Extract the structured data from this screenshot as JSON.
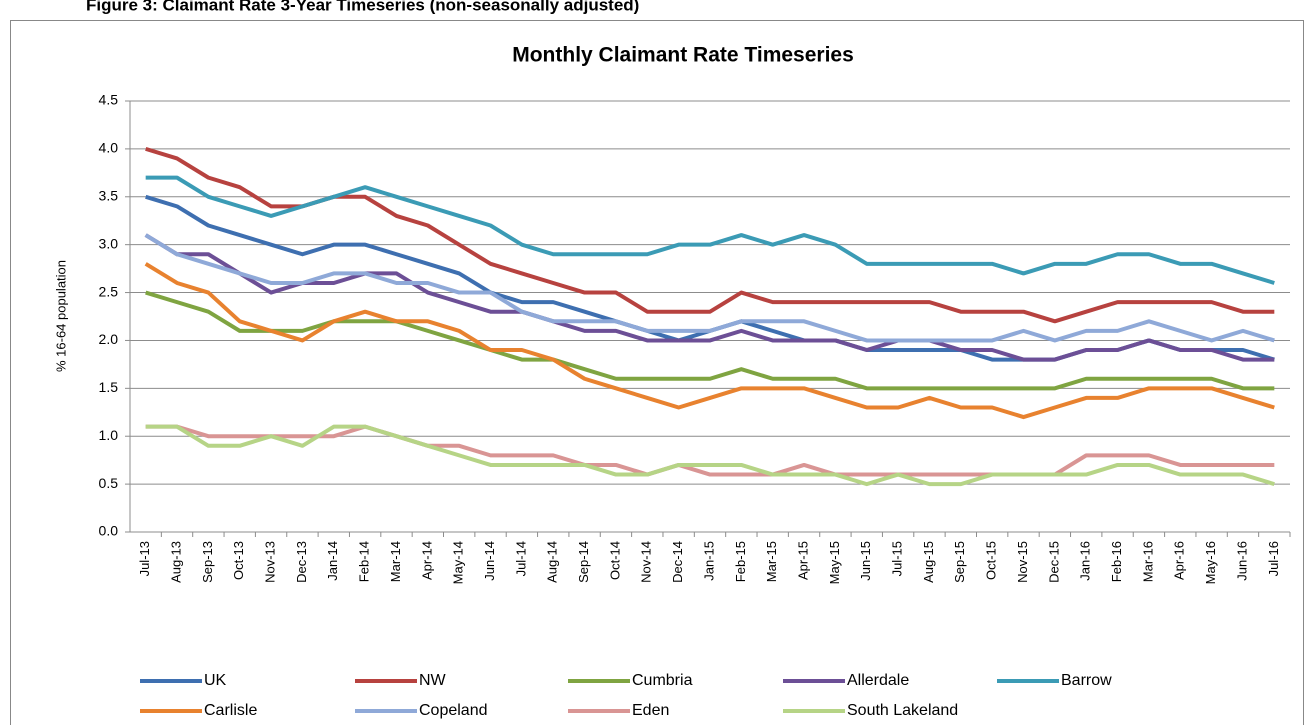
{
  "chart_data": {
    "type": "line",
    "caption": "Figure 3: Claimant Rate 3-Year Timeseries (non-seasonally adjusted)",
    "title": "Monthly Claimant Rate Timeseries",
    "y_label": "% 16-64 population",
    "categories": [
      "Jul-13",
      "Aug-13",
      "Sep-13",
      "Oct-13",
      "Nov-13",
      "Dec-13",
      "Jan-14",
      "Feb-14",
      "Mar-14",
      "Apr-14",
      "May-14",
      "Jun-14",
      "Jul-14",
      "Aug-14",
      "Sep-14",
      "Oct-14",
      "Nov-14",
      "Dec-14",
      "Jan-15",
      "Feb-15",
      "Mar-15",
      "Apr-15",
      "May-15",
      "Jun-15",
      "Jul-15",
      "Aug-15",
      "Sep-15",
      "Oct-15",
      "Nov-15",
      "Dec-15",
      "Jan-16",
      "Feb-16",
      "Mar-16",
      "Apr-16",
      "May-16",
      "Jun-16",
      "Jul-16"
    ],
    "series": [
      {
        "name": "UK",
        "color": "#3e6fb0",
        "values": [
          3.5,
          3.4,
          3.2,
          3.1,
          3.0,
          2.9,
          3.0,
          3.0,
          2.9,
          2.8,
          2.7,
          2.5,
          2.4,
          2.4,
          2.3,
          2.2,
          2.1,
          2.0,
          2.1,
          2.2,
          2.1,
          2.0,
          2.0,
          1.9,
          1.9,
          1.9,
          1.9,
          1.8,
          1.8,
          1.8,
          1.9,
          1.9,
          2.0,
          1.9,
          1.9,
          1.9,
          1.8
        ]
      },
      {
        "name": "NW",
        "color": "#b7423f",
        "values": [
          4.0,
          3.9,
          3.7,
          3.6,
          3.4,
          3.4,
          3.5,
          3.5,
          3.3,
          3.2,
          3.0,
          2.8,
          2.7,
          2.6,
          2.5,
          2.5,
          2.3,
          2.3,
          2.3,
          2.5,
          2.4,
          2.4,
          2.4,
          2.4,
          2.4,
          2.4,
          2.3,
          2.3,
          2.3,
          2.2,
          2.3,
          2.4,
          2.4,
          2.4,
          2.4,
          2.3,
          2.3
        ]
      },
      {
        "name": "Cumbria",
        "color": "#7fa441",
        "values": [
          2.5,
          2.4,
          2.3,
          2.1,
          2.1,
          2.1,
          2.2,
          2.2,
          2.2,
          2.1,
          2.0,
          1.9,
          1.8,
          1.8,
          1.7,
          1.6,
          1.6,
          1.6,
          1.6,
          1.7,
          1.6,
          1.6,
          1.6,
          1.5,
          1.5,
          1.5,
          1.5,
          1.5,
          1.5,
          1.5,
          1.6,
          1.6,
          1.6,
          1.6,
          1.6,
          1.5,
          1.5
        ]
      },
      {
        "name": "Allerdale",
        "color": "#6c4f96",
        "values": [
          3.1,
          2.9,
          2.9,
          2.7,
          2.5,
          2.6,
          2.6,
          2.7,
          2.7,
          2.5,
          2.4,
          2.3,
          2.3,
          2.2,
          2.1,
          2.1,
          2.0,
          2.0,
          2.0,
          2.1,
          2.0,
          2.0,
          2.0,
          1.9,
          2.0,
          2.0,
          1.9,
          1.9,
          1.8,
          1.8,
          1.9,
          1.9,
          2.0,
          1.9,
          1.9,
          1.8,
          1.8
        ]
      },
      {
        "name": "Barrow",
        "color": "#3b9bb5",
        "values": [
          3.7,
          3.7,
          3.5,
          3.4,
          3.3,
          3.4,
          3.5,
          3.6,
          3.5,
          3.4,
          3.3,
          3.2,
          3.0,
          2.9,
          2.9,
          2.9,
          2.9,
          3.0,
          3.0,
          3.1,
          3.0,
          3.1,
          3.0,
          2.8,
          2.8,
          2.8,
          2.8,
          2.8,
          2.7,
          2.8,
          2.8,
          2.9,
          2.9,
          2.8,
          2.8,
          2.7,
          2.6
        ]
      },
      {
        "name": "Carlisle",
        "color": "#e8822f",
        "values": [
          2.8,
          2.6,
          2.5,
          2.2,
          2.1,
          2.0,
          2.2,
          2.3,
          2.2,
          2.2,
          2.1,
          1.9,
          1.9,
          1.8,
          1.6,
          1.5,
          1.4,
          1.3,
          1.4,
          1.5,
          1.5,
          1.5,
          1.4,
          1.3,
          1.3,
          1.4,
          1.3,
          1.3,
          1.2,
          1.3,
          1.4,
          1.4,
          1.5,
          1.5,
          1.5,
          1.4,
          1.3
        ]
      },
      {
        "name": "Copeland",
        "color": "#8fa9d8",
        "values": [
          3.1,
          2.9,
          2.8,
          2.7,
          2.6,
          2.6,
          2.7,
          2.7,
          2.6,
          2.6,
          2.5,
          2.5,
          2.3,
          2.2,
          2.2,
          2.2,
          2.1,
          2.1,
          2.1,
          2.2,
          2.2,
          2.2,
          2.1,
          2.0,
          2.0,
          2.0,
          2.0,
          2.0,
          2.1,
          2.0,
          2.1,
          2.1,
          2.2,
          2.1,
          2.0,
          2.1,
          2.0
        ]
      },
      {
        "name": "Eden",
        "color": "#d99594",
        "values": [
          1.1,
          1.1,
          1.0,
          1.0,
          1.0,
          1.0,
          1.0,
          1.1,
          1.0,
          0.9,
          0.9,
          0.8,
          0.8,
          0.8,
          0.7,
          0.7,
          0.6,
          0.7,
          0.6,
          0.6,
          0.6,
          0.7,
          0.6,
          0.6,
          0.6,
          0.6,
          0.6,
          0.6,
          0.6,
          0.6,
          0.8,
          0.8,
          0.8,
          0.7,
          0.7,
          0.7,
          0.7
        ]
      },
      {
        "name": "South Lakeland",
        "color": "#b6d486",
        "values": [
          1.1,
          1.1,
          0.9,
          0.9,
          1.0,
          0.9,
          1.1,
          1.1,
          1.0,
          0.9,
          0.8,
          0.7,
          0.7,
          0.7,
          0.7,
          0.6,
          0.6,
          0.7,
          0.7,
          0.7,
          0.6,
          0.6,
          0.6,
          0.5,
          0.6,
          0.5,
          0.5,
          0.6,
          0.6,
          0.6,
          0.6,
          0.7,
          0.7,
          0.6,
          0.6,
          0.6,
          0.5
        ]
      }
    ],
    "ylim": [
      0,
      4.5
    ],
    "yticks": [
      {
        "value": 0,
        "label": "0.0"
      },
      0.5,
      {
        "value": 1,
        "label": "1.0"
      },
      1.5,
      {
        "value": 2,
        "label": "2.0"
      },
      2.5,
      {
        "value": 3,
        "label": "3.0"
      },
      3.5,
      {
        "value": 4,
        "label": "4.0"
      },
      4.5
    ],
    "grid": true,
    "legend": "bottom"
  }
}
